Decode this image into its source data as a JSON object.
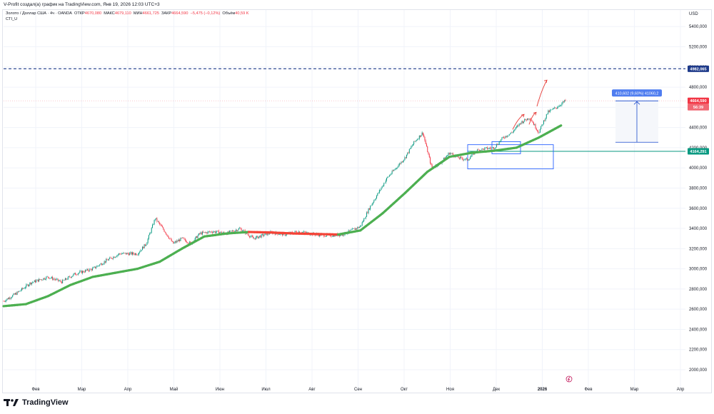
{
  "header": {
    "author_line": "V-Profit создал(а) график на TradingView.com, Янв 19, 2026 12:03 UTC+3"
  },
  "legend": {
    "symbol": "Золото / Доллар США · 4ч · OANDA",
    "open_label": "ОТКР",
    "open": "4670,080",
    "high_label": "МАКС",
    "high": "4679,110",
    "low_label": "МИН",
    "low": "4661,725",
    "close_label": "ЗАКР",
    "close": "4664,590",
    "change": "−5,475 (−0,12%)",
    "volume_label": "Объём",
    "volume": "40,59 K",
    "indicator": "CTI_U"
  },
  "axis": {
    "currency": "USD"
  },
  "price_labels": {
    "resistance": "4982,065",
    "last_price": "4664,590",
    "countdown": "56:39",
    "support": "4164,291"
  },
  "measure": {
    "text": "410,602 (9,60%) 41060,2"
  },
  "footer": {
    "brand": "TradingView"
  },
  "colors": {
    "up": "#089981",
    "down": "#f23645",
    "ma_up": "#4caf50",
    "ma_down": "#f44336",
    "resistance_line": "#1e3a8a",
    "support_line": "#089981",
    "box": "#2962ff",
    "measure": "#1848cc"
  },
  "chart_data": {
    "type": "line",
    "title": "",
    "xlabel": "",
    "ylabel": "USD",
    "ylim": [
      1900,
      5500
    ],
    "y_ticks": [
      2000,
      2200,
      2400,
      2600,
      2800,
      3000,
      3200,
      3400,
      3600,
      3800,
      4000,
      4200,
      4400,
      4600,
      4800,
      5000,
      5200,
      5400
    ],
    "y_tick_labels": [
      "2000,000",
      "2200,000",
      "2400,000",
      "2600,000",
      "2800,000",
      "3000,000",
      "3200,000",
      "3400,000",
      "3600,000",
      "3800,000",
      "4000,000",
      "4200,000",
      "4400,000",
      "4600,000",
      "4800,000",
      "5000,000",
      "5200,000",
      "5400,000"
    ],
    "x_months": [
      "Фев",
      "Мар",
      "Апр",
      "Май",
      "Июн",
      "Июл",
      "Авг",
      "Сен",
      "Окт",
      "Ноя",
      "Дек",
      "2026",
      "Фев",
      "Мар",
      "Апр"
    ],
    "x_month_index": [
      1,
      2,
      3,
      4,
      5,
      6,
      7,
      8,
      9,
      10,
      11,
      12,
      13,
      14,
      15
    ],
    "series": [
      {
        "kind": "price",
        "x": [
          0,
          0.3,
          0.6,
          1.0,
          1.3,
          1.6,
          2.0,
          2.3,
          2.6,
          3.0,
          3.2,
          3.4,
          3.6,
          3.8,
          4.0,
          4.2,
          4.4,
          4.7,
          5.0,
          5.3,
          5.6,
          6.0,
          6.3,
          6.6,
          7.0,
          7.3,
          7.6,
          8.0,
          8.2,
          8.4,
          8.6,
          8.8,
          9.0,
          9.2,
          9.4,
          9.6,
          9.8,
          10.0,
          10.2,
          10.4,
          10.6,
          10.8,
          11.0,
          11.2,
          11.4,
          11.6,
          11.8,
          12.0,
          12.2,
          12.4,
          12.6
        ],
        "y": [
          2680,
          2760,
          2860,
          2920,
          2870,
          2950,
          3000,
          3080,
          3150,
          3150,
          3250,
          3500,
          3380,
          3250,
          3300,
          3250,
          3350,
          3370,
          3350,
          3400,
          3300,
          3360,
          3340,
          3370,
          3340,
          3330,
          3340,
          3420,
          3600,
          3750,
          3900,
          4000,
          4100,
          4250,
          4350,
          4000,
          4050,
          4150,
          4100,
          4080,
          4170,
          4190,
          4200,
          4300,
          4350,
          4450,
          4500,
          4350,
          4550,
          4600,
          4665
        ]
      },
      {
        "kind": "moving-average",
        "x": [
          0,
          0.5,
          1.0,
          1.5,
          2.0,
          2.5,
          3.0,
          3.5,
          4.0,
          4.5,
          5.0,
          5.5,
          6.0,
          6.5,
          7.0,
          7.5,
          8.0,
          8.5,
          9.0,
          9.5,
          10.0,
          10.5,
          11.0,
          11.5,
          12.0,
          12.5
        ],
        "y": [
          2630,
          2650,
          2730,
          2840,
          2920,
          2960,
          3000,
          3070,
          3200,
          3320,
          3350,
          3365,
          3360,
          3350,
          3345,
          3340,
          3380,
          3550,
          3750,
          3960,
          4110,
          4150,
          4170,
          4200,
          4300,
          4420
        ]
      }
    ],
    "annotations": {
      "resistance": 4982.065,
      "support": 4164.291,
      "last_price": 4664.59
    }
  }
}
